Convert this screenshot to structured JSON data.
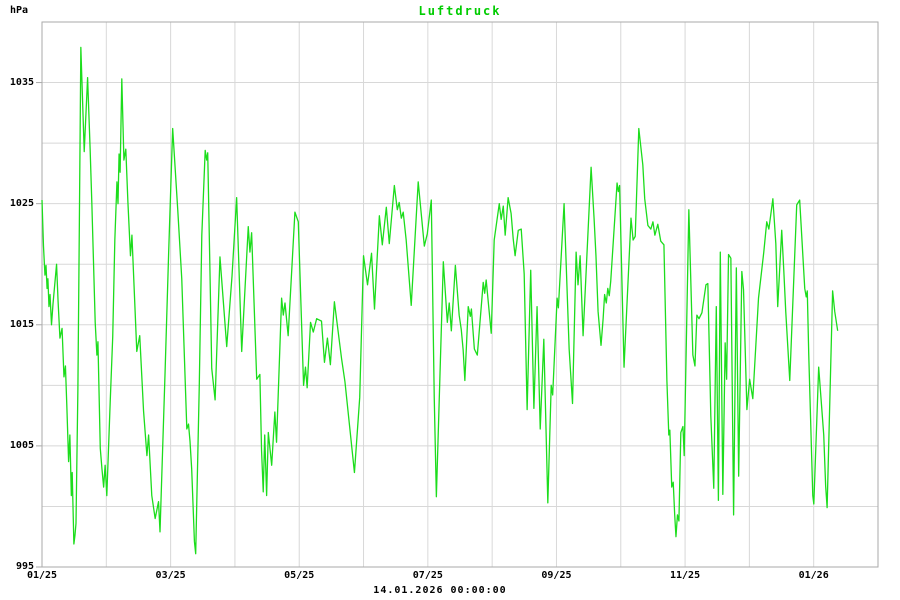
{
  "chart": {
    "title": "Luftdruck",
    "unit_label": "hPa",
    "footer_timestamp": "14.01.2026 00:00:00"
  },
  "colors": {
    "line": "#1cdd1c",
    "title_text": "#00cc00",
    "grid": "#d8d8d8",
    "border": "#aaaaaa",
    "tick": "#aaaaaa",
    "text": "#000000",
    "background": "#ffffff"
  },
  "chart_data": {
    "type": "line",
    "title": "Luftdruck",
    "xlabel": "",
    "ylabel": "hPa",
    "ylim": [
      995,
      1040
    ],
    "y_grid_step_hpa": 5,
    "y_tick_labels": [
      1035,
      1025,
      1015,
      1005,
      995
    ],
    "x_tick_labels": [
      "01/25",
      "03/25",
      "05/25",
      "07/25",
      "09/25",
      "11/25",
      "01/26"
    ],
    "x_months_total": 13,
    "x_axis_start": "2025-01-01",
    "x_total_days": 396,
    "grid": true,
    "legend_position": "none",
    "series": [
      {
        "name": "Luftdruck (hPa)",
        "x_unit": "days since 2025-01-01",
        "points": [
          [
            0,
            1025.3
          ],
          [
            0.7,
            1021.5
          ],
          [
            1.4,
            1019.1
          ],
          [
            1.9,
            1019.9
          ],
          [
            2.4,
            1018.0
          ],
          [
            2.8,
            1018.8
          ],
          [
            3.3,
            1016.5
          ],
          [
            3.8,
            1017.5
          ],
          [
            4.5,
            1015.0
          ],
          [
            5.2,
            1016.7
          ],
          [
            6.9,
            1020.0
          ],
          [
            7.6,
            1017.0
          ],
          [
            8.5,
            1013.9
          ],
          [
            9.5,
            1014.7
          ],
          [
            10.4,
            1010.7
          ],
          [
            11.1,
            1011.6
          ],
          [
            11.8,
            1008.1
          ],
          [
            12.6,
            1003.7
          ],
          [
            13.2,
            1005.9
          ],
          [
            13.9,
            1000.9
          ],
          [
            14.3,
            1002.8
          ],
          [
            15.1,
            996.9
          ],
          [
            15.6,
            997.6
          ],
          [
            16.1,
            998.6
          ],
          [
            17.0,
            1009.7
          ],
          [
            17.7,
            1023.5
          ],
          [
            18.4,
            1037.9
          ],
          [
            20.0,
            1029.3
          ],
          [
            21.6,
            1035.4
          ],
          [
            22.8,
            1029.5
          ],
          [
            23.6,
            1025.1
          ],
          [
            25.2,
            1015.2
          ],
          [
            26.0,
            1012.5
          ],
          [
            26.5,
            1013.6
          ],
          [
            27.6,
            1004.8
          ],
          [
            28.4,
            1003.1
          ],
          [
            29.2,
            1001.6
          ],
          [
            29.9,
            1003.4
          ],
          [
            30.7,
            1000.9
          ],
          [
            32.3,
            1008.6
          ],
          [
            33.5,
            1014.0
          ],
          [
            34.5,
            1022.0
          ],
          [
            35.5,
            1026.8
          ],
          [
            36.0,
            1025.0
          ],
          [
            36.5,
            1029.1
          ],
          [
            37.0,
            1027.6
          ],
          [
            37.8,
            1035.3
          ],
          [
            38.8,
            1028.6
          ],
          [
            39.7,
            1029.5
          ],
          [
            40.7,
            1025.1
          ],
          [
            41.9,
            1020.7
          ],
          [
            42.6,
            1022.4
          ],
          [
            44.9,
            1012.8
          ],
          [
            46.3,
            1014.1
          ],
          [
            48.1,
            1007.9
          ],
          [
            49.7,
            1004.2
          ],
          [
            50.5,
            1005.9
          ],
          [
            52.0,
            1000.9
          ],
          [
            53.6,
            999.0
          ],
          [
            55.2,
            1000.4
          ],
          [
            55.9,
            997.9
          ],
          [
            58.3,
            1011.1
          ],
          [
            60.0,
            1021.0
          ],
          [
            61.9,
            1031.2
          ],
          [
            64.3,
            1024.5
          ],
          [
            66.2,
            1018.8
          ],
          [
            68.6,
            1006.4
          ],
          [
            69.4,
            1006.8
          ],
          [
            70.1,
            1005.4
          ],
          [
            70.9,
            1003.1
          ],
          [
            72.2,
            997.1
          ],
          [
            72.8,
            996.1
          ],
          [
            74.5,
            1010.0
          ],
          [
            75.7,
            1022.4
          ],
          [
            77.3,
            1029.4
          ],
          [
            78.0,
            1028.6
          ],
          [
            78.5,
            1029.2
          ],
          [
            79.5,
            1020.0
          ],
          [
            80.4,
            1011.4
          ],
          [
            82.0,
            1008.8
          ],
          [
            84.3,
            1020.6
          ],
          [
            87.5,
            1013.2
          ],
          [
            90.0,
            1019.0
          ],
          [
            92.2,
            1025.5
          ],
          [
            94.6,
            1012.8
          ],
          [
            97.7,
            1023.1
          ],
          [
            98.5,
            1021.0
          ],
          [
            99.3,
            1022.6
          ],
          [
            101.7,
            1010.5
          ],
          [
            103.2,
            1010.9
          ],
          [
            104.0,
            1004.6
          ],
          [
            104.8,
            1001.2
          ],
          [
            105.5,
            1005.9
          ],
          [
            106.4,
            1000.9
          ],
          [
            107.2,
            1006.1
          ],
          [
            108.8,
            1003.4
          ],
          [
            110.3,
            1007.8
          ],
          [
            111.1,
            1005.3
          ],
          [
            113.5,
            1017.2
          ],
          [
            114.3,
            1015.8
          ],
          [
            115.1,
            1016.8
          ],
          [
            116.6,
            1014.1
          ],
          [
            119.8,
            1024.3
          ],
          [
            121.4,
            1023.5
          ],
          [
            123.9,
            1010.0
          ],
          [
            124.8,
            1011.5
          ],
          [
            125.6,
            1009.8
          ],
          [
            127.2,
            1015.2
          ],
          [
            128.5,
            1014.4
          ],
          [
            130.1,
            1015.5
          ],
          [
            132.4,
            1015.3
          ],
          [
            133.8,
            1011.9
          ],
          [
            135.2,
            1013.9
          ],
          [
            136.6,
            1011.7
          ],
          [
            138.5,
            1016.9
          ],
          [
            141.9,
            1012.2
          ],
          [
            143.5,
            1010.3
          ],
          [
            148.0,
            1002.8
          ],
          [
            150.5,
            1009.0
          ],
          [
            152.3,
            1020.7
          ],
          [
            154.2,
            1018.3
          ],
          [
            156.1,
            1020.9
          ],
          [
            157.5,
            1016.3
          ],
          [
            159.8,
            1024.0
          ],
          [
            161.2,
            1021.6
          ],
          [
            163.1,
            1024.7
          ],
          [
            164.5,
            1021.7
          ],
          [
            166.9,
            1026.5
          ],
          [
            168.3,
            1024.5
          ],
          [
            169.2,
            1025.1
          ],
          [
            170.2,
            1023.8
          ],
          [
            171.1,
            1024.3
          ],
          [
            172.5,
            1022.0
          ],
          [
            174.9,
            1016.6
          ],
          [
            178.2,
            1026.8
          ],
          [
            181.1,
            1021.5
          ],
          [
            182.5,
            1022.5
          ],
          [
            184.4,
            1025.3
          ],
          [
            185.8,
            1009.0
          ],
          [
            186.8,
            1000.8
          ],
          [
            190.1,
            1020.2
          ],
          [
            192.0,
            1015.2
          ],
          [
            192.9,
            1016.8
          ],
          [
            193.9,
            1014.5
          ],
          [
            195.8,
            1019.9
          ],
          [
            197.6,
            1015.8
          ],
          [
            198.6,
            1014.6
          ],
          [
            199.5,
            1012.9
          ],
          [
            200.3,
            1010.4
          ],
          [
            201.9,
            1016.5
          ],
          [
            202.9,
            1015.7
          ],
          [
            203.4,
            1016.3
          ],
          [
            204.8,
            1013.0
          ],
          [
            206.2,
            1012.5
          ],
          [
            209.0,
            1018.5
          ],
          [
            209.7,
            1017.6
          ],
          [
            210.4,
            1018.7
          ],
          [
            212.8,
            1014.3
          ],
          [
            214.2,
            1022.0
          ],
          [
            216.6,
            1025.0
          ],
          [
            217.5,
            1023.7
          ],
          [
            218.5,
            1024.8
          ],
          [
            219.4,
            1022.4
          ],
          [
            220.8,
            1025.5
          ],
          [
            222.2,
            1024.2
          ],
          [
            223.2,
            1022.1
          ],
          [
            224.1,
            1020.7
          ],
          [
            225.6,
            1022.8
          ],
          [
            227.0,
            1022.9
          ],
          [
            228.4,
            1019.2
          ],
          [
            229.8,
            1008.0
          ],
          [
            231.5,
            1019.5
          ],
          [
            233.0,
            1008.1
          ],
          [
            234.5,
            1016.5
          ],
          [
            236.0,
            1006.4
          ],
          [
            237.7,
            1013.8
          ],
          [
            239.6,
            1000.3
          ],
          [
            241.2,
            1010.0
          ],
          [
            241.9,
            1009.2
          ],
          [
            244.0,
            1017.2
          ],
          [
            244.6,
            1016.4
          ],
          [
            247.3,
            1025.0
          ],
          [
            249.7,
            1013.0
          ],
          [
            251.3,
            1008.5
          ],
          [
            253.0,
            1021.0
          ],
          [
            253.9,
            1018.3
          ],
          [
            254.9,
            1020.7
          ],
          [
            256.3,
            1014.1
          ],
          [
            260.1,
            1028.0
          ],
          [
            261.5,
            1023.8
          ],
          [
            262.4,
            1020.7
          ],
          [
            263.4,
            1016.1
          ],
          [
            264.8,
            1013.3
          ],
          [
            265.8,
            1015.5
          ],
          [
            266.5,
            1017.5
          ],
          [
            267.3,
            1016.8
          ],
          [
            268.0,
            1018.0
          ],
          [
            268.7,
            1017.4
          ],
          [
            269.4,
            1018.6
          ],
          [
            272.4,
            1026.7
          ],
          [
            273.0,
            1026.0
          ],
          [
            273.6,
            1026.5
          ],
          [
            275.7,
            1011.5
          ],
          [
            279.0,
            1023.8
          ],
          [
            280.0,
            1022.0
          ],
          [
            281.0,
            1022.3
          ],
          [
            282.7,
            1031.2
          ],
          [
            284.6,
            1028.2
          ],
          [
            285.5,
            1025.4
          ],
          [
            287.0,
            1023.2
          ],
          [
            288.4,
            1022.9
          ],
          [
            289.4,
            1023.5
          ],
          [
            290.3,
            1022.4
          ],
          [
            291.7,
            1023.3
          ],
          [
            293.1,
            1021.9
          ],
          [
            294.6,
            1021.6
          ],
          [
            296.0,
            1010.4
          ],
          [
            296.9,
            1005.9
          ],
          [
            297.4,
            1006.3
          ],
          [
            298.3,
            1001.6
          ],
          [
            299.0,
            1002.0
          ],
          [
            299.7,
            999.3
          ],
          [
            300.3,
            997.5
          ],
          [
            301.0,
            999.3
          ],
          [
            301.7,
            998.8
          ],
          [
            302.6,
            1006.1
          ],
          [
            303.6,
            1006.6
          ],
          [
            304.2,
            1004.2
          ],
          [
            306.4,
            1024.5
          ],
          [
            308.3,
            1012.5
          ],
          [
            309.3,
            1011.6
          ],
          [
            310.2,
            1015.8
          ],
          [
            311.2,
            1015.5
          ],
          [
            312.6,
            1016.0
          ],
          [
            314.5,
            1018.3
          ],
          [
            315.4,
            1018.4
          ],
          [
            316.8,
            1007.5
          ],
          [
            318.2,
            1001.5
          ],
          [
            319.4,
            1016.5
          ],
          [
            320.4,
            1000.5
          ],
          [
            321.3,
            1021.0
          ],
          [
            322.5,
            1001.0
          ],
          [
            323.6,
            1013.5
          ],
          [
            324.3,
            1010.5
          ],
          [
            325.2,
            1020.8
          ],
          [
            326.3,
            1020.5
          ],
          [
            327.6,
            999.3
          ],
          [
            328.9,
            1019.7
          ],
          [
            330.0,
            1002.5
          ],
          [
            331.5,
            1019.4
          ],
          [
            332.3,
            1017.9
          ],
          [
            333.9,
            1008.0
          ],
          [
            335.2,
            1010.5
          ],
          [
            336.7,
            1008.9
          ],
          [
            339.4,
            1017.2
          ],
          [
            341.9,
            1021.0
          ],
          [
            343.3,
            1023.5
          ],
          [
            344.3,
            1022.9
          ],
          [
            346.2,
            1025.4
          ],
          [
            347.6,
            1021.7
          ],
          [
            348.5,
            1016.5
          ],
          [
            350.4,
            1022.8
          ],
          [
            351.4,
            1019.4
          ],
          [
            352.3,
            1016.1
          ],
          [
            354.2,
            1010.4
          ],
          [
            357.5,
            1024.9
          ],
          [
            358.9,
            1025.3
          ],
          [
            361.3,
            1018.0
          ],
          [
            362.0,
            1017.3
          ],
          [
            362.5,
            1017.8
          ],
          [
            363.2,
            1012.5
          ],
          [
            365.1,
            1000.9
          ],
          [
            365.6,
            1000.2
          ],
          [
            367.9,
            1011.5
          ],
          [
            370.3,
            1005.9
          ],
          [
            371.2,
            1001.7
          ],
          [
            371.9,
            999.9
          ],
          [
            374.5,
            1017.8
          ],
          [
            375.5,
            1016.1
          ],
          [
            376.9,
            1014.5
          ]
        ]
      }
    ]
  }
}
